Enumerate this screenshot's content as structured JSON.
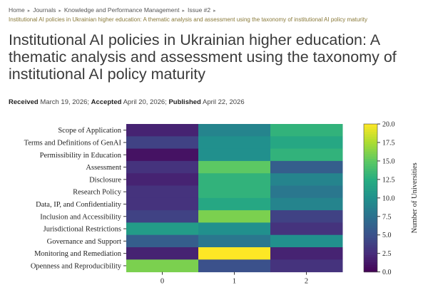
{
  "breadcrumb": {
    "items": [
      "Home",
      "Journals",
      "Knowledge and Performance Management",
      "Issue #2"
    ],
    "current": "Institutional AI policies in Ukrainian higher education: A thematic analysis and assessment using the taxonomy of institutional AI policy maturity"
  },
  "article": {
    "title": "Institutional AI policies in Ukrainian higher education: A thematic analysis and assessment using the taxonomy of institutional AI policy maturity",
    "received_label": "Received",
    "received": "March 19, 2026;",
    "accepted_label": "Accepted",
    "accepted": "April 20, 2026;",
    "published_label": "Published",
    "published": "April 22, 2026"
  },
  "chart_data": {
    "type": "heatmap",
    "rows": [
      "Scope of Application",
      "Terms and Definitions of GenAI",
      "Permissibility in Education",
      "Assessment",
      "Disclosure",
      "Research Policy",
      "Data, IP, and Confidentiality",
      "Inclusion and Accessibility",
      "Jurisdictional Restrictions",
      "Governance and Support",
      "Monitoring and Remediation",
      "Openness and Reproducibility"
    ],
    "columns": [
      "0",
      "1",
      "2"
    ],
    "values": [
      [
        2,
        9,
        13
      ],
      [
        4,
        10,
        12
      ],
      [
        1,
        10,
        13
      ],
      [
        3,
        15,
        6
      ],
      [
        2,
        13,
        9
      ],
      [
        3,
        13,
        8
      ],
      [
        3,
        12,
        9
      ],
      [
        4,
        16,
        4
      ],
      [
        11,
        10,
        3
      ],
      [
        6,
        8,
        10
      ],
      [
        2,
        20,
        2
      ],
      [
        16,
        5,
        3
      ]
    ],
    "colorbar_label": "Number of Universities",
    "colorbar_ticks": [
      "0.0",
      "2.5",
      "5.0",
      "7.5",
      "10.0",
      "12.5",
      "15.0",
      "17.5",
      "20.0"
    ],
    "vmin": 0,
    "vmax": 20,
    "colormap": "viridis"
  }
}
